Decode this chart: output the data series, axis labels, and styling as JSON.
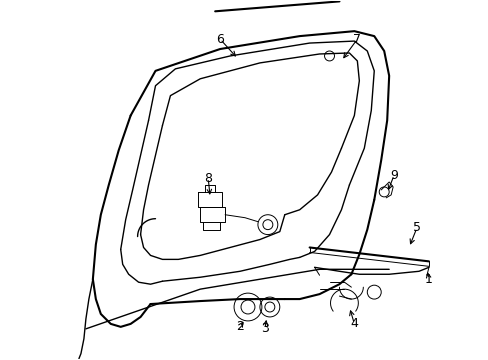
{
  "background_color": "#ffffff",
  "line_color": "#000000",
  "lw_thick": 1.5,
  "lw_mid": 1.0,
  "lw_thin": 0.7,
  "font_size": 9,
  "figsize": [
    4.89,
    3.6
  ],
  "dpi": 100
}
